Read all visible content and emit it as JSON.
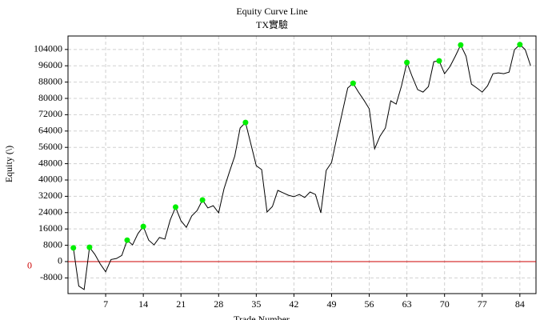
{
  "chart_data": {
    "type": "line",
    "title": "Equity Curve Line",
    "subtitle": "TX實驗",
    "y_label": "Equity (\\)",
    "x_label": "Trade Number",
    "x": [
      1,
      2,
      3,
      4,
      5,
      6,
      7,
      8,
      9,
      10,
      11,
      12,
      13,
      14,
      15,
      16,
      17,
      18,
      19,
      20,
      21,
      22,
      23,
      24,
      25,
      26,
      27,
      28,
      29,
      30,
      31,
      32,
      33,
      34,
      35,
      36,
      37,
      38,
      39,
      40,
      41,
      42,
      43,
      44,
      45,
      46,
      47,
      48,
      49,
      50,
      51,
      52,
      53,
      54,
      55,
      56,
      57,
      58,
      59,
      60,
      61,
      62,
      63,
      64,
      65,
      66,
      67,
      68,
      69,
      70,
      71,
      72,
      73,
      74,
      75,
      76,
      77,
      78,
      79,
      80,
      81,
      82,
      83,
      84,
      85,
      86
    ],
    "series": [
      {
        "color": "#000000",
        "marker_color": "#00ee00",
        "values": [
          6700,
          -12000,
          -13700,
          7000,
          3500,
          -1200,
          -5000,
          1000,
          1500,
          3000,
          10500,
          8200,
          13700,
          17200,
          10500,
          8200,
          11800,
          11000,
          20400,
          26700,
          20000,
          16800,
          22400,
          25000,
          30200,
          26300,
          27400,
          23900,
          35700,
          43900,
          51700,
          65500,
          68200,
          57600,
          47000,
          45100,
          24300,
          27000,
          34900,
          33700,
          32500,
          31800,
          32900,
          31400,
          34100,
          32900,
          23900,
          44700,
          48600,
          61200,
          73300,
          85100,
          87400,
          83100,
          79200,
          74900,
          55300,
          61500,
          65500,
          78800,
          77200,
          86200,
          97600,
          90600,
          84300,
          83100,
          85800,
          98000,
          98400,
          92100,
          95600,
          100700,
          106200,
          100700,
          87000,
          85100,
          83100,
          86200,
          92100,
          92500,
          92100,
          92900,
          103900,
          106400,
          103900,
          96000
        ]
      }
    ],
    "xlim": [
      0,
      87
    ],
    "xticks": [
      7,
      14,
      21,
      28,
      35,
      42,
      49,
      56,
      63,
      70,
      77,
      84
    ],
    "ylim": [
      -15700,
      110600
    ],
    "yticks": [
      -8000,
      0,
      8000,
      16000,
      24000,
      32000,
      40000,
      48000,
      56000,
      64000,
      72000,
      80000,
      88000,
      96000,
      104000
    ],
    "grid": true,
    "zero_line": {
      "value": 0,
      "color": "#cc0000"
    }
  }
}
